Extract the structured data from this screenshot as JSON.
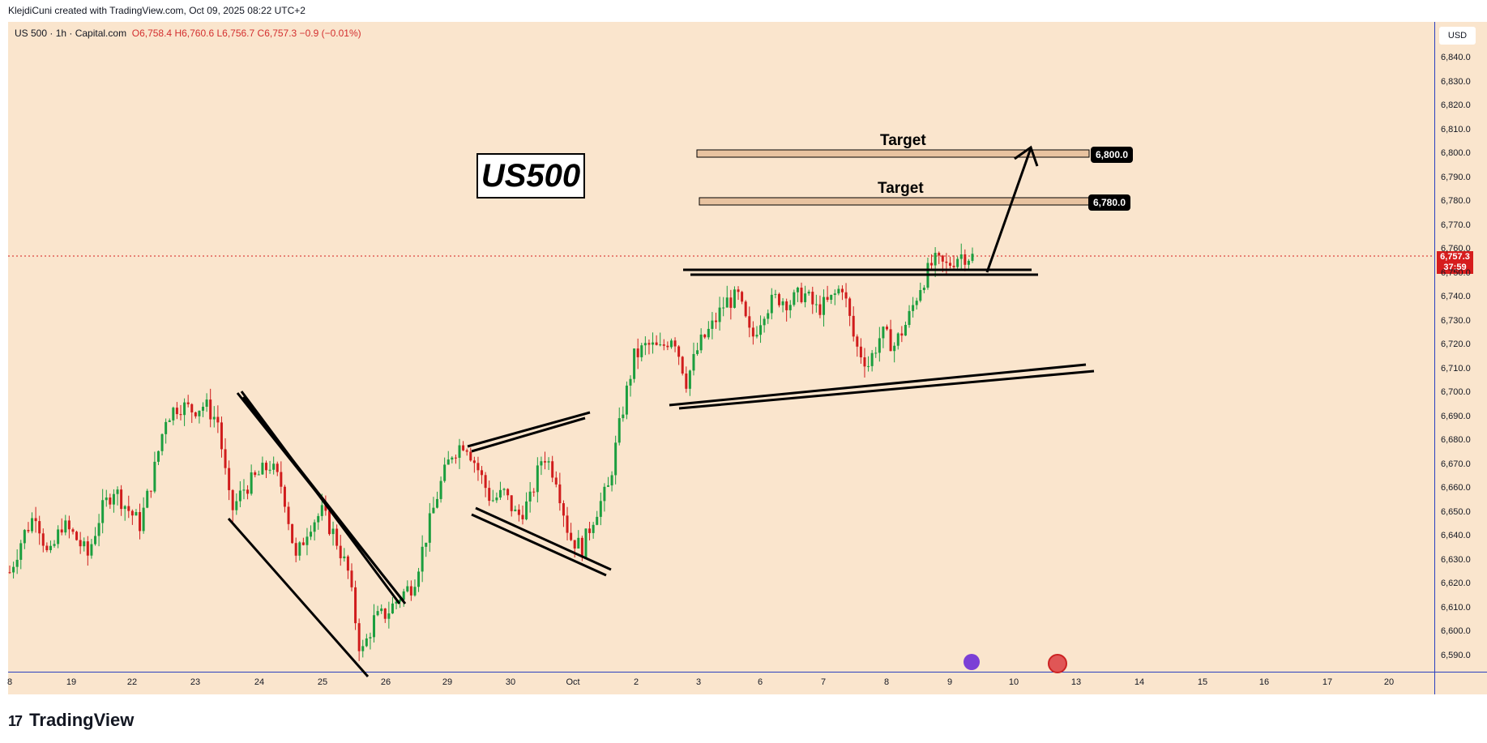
{
  "header": {
    "attribution": "KlejdiCuni created with TradingView.com, Oct 09, 2025 08:22 UTC+2"
  },
  "legend": {
    "symbol": "US 500 · 1h · Capital.com",
    "ohlc": "O6,758.4  H6,760.6  L6,756.7  C6,757.3  −0.9 (−0.01%)"
  },
  "price_axis": {
    "currency": "USD",
    "current_price": "6,757.3",
    "countdown": "37:59"
  },
  "annotations": {
    "title": "US500",
    "target1_label": "Target",
    "target1_price": "6,800.0",
    "target2_label": "Target",
    "target2_price": "6,780.0"
  },
  "footer": {
    "brand": "TradingView"
  },
  "colors": {
    "background": "#fae5cd",
    "up_candle": "#1b9e3e",
    "down_candle": "#d01c1c",
    "price_line": "#d61d1d",
    "target_zone": "#e8c3a0"
  },
  "chart_data": {
    "type": "candlestick",
    "symbol": "US 500",
    "interval": "1h",
    "y_ticks": [
      6590,
      6600,
      6610,
      6620,
      6630,
      6640,
      6650,
      6660,
      6670,
      6680,
      6690,
      6700,
      6710,
      6720,
      6730,
      6740,
      6750,
      6760,
      6770,
      6780,
      6790,
      6800,
      6810,
      6820,
      6830,
      6840
    ],
    "y_tick_labels": [
      "6,590.0",
      "6,600.0",
      "6,610.0",
      "6,620.0",
      "6,630.0",
      "6,640.0",
      "6,650.0",
      "6,660.0",
      "6,670.0",
      "6,680.0",
      "6,690.0",
      "6,700.0",
      "6,710.0",
      "6,720.0",
      "6,730.0",
      "6,740.0",
      "6,750.0",
      "6,760.0",
      "6,770.0",
      "6,780.0",
      "6,790.0",
      "6,800.0",
      "6,810.0",
      "6,820.0",
      "6,830.0",
      "6,840.0"
    ],
    "ylim": [
      6583,
      6850
    ],
    "x_tick_labels": [
      "8",
      "19",
      "22",
      "23",
      "24",
      "25",
      "26",
      "29",
      "30",
      "Oct",
      "2",
      "3",
      "6",
      "7",
      "8",
      "9",
      "10",
      "13",
      "14",
      "15",
      "16",
      "17",
      "20"
    ],
    "close_path": [
      [
        0,
        6625
      ],
      [
        1,
        6640
      ],
      [
        2,
        6650
      ],
      [
        3,
        6630
      ],
      [
        4,
        6645
      ],
      [
        5,
        6640
      ],
      [
        6,
        6632
      ],
      [
        7,
        6650
      ],
      [
        8,
        6660
      ],
      [
        9,
        6652
      ],
      [
        10,
        6645
      ],
      [
        11,
        6665
      ],
      [
        12,
        6690
      ],
      [
        13,
        6695
      ],
      [
        14,
        6693
      ],
      [
        15,
        6695
      ],
      [
        16,
        6688
      ],
      [
        17,
        6650
      ],
      [
        18,
        6660
      ],
      [
        19,
        6665
      ],
      [
        20,
        6670
      ],
      [
        21,
        6660
      ],
      [
        22,
        6630
      ],
      [
        23,
        6645
      ],
      [
        24,
        6650
      ],
      [
        25,
        6640
      ],
      [
        26,
        6625
      ],
      [
        27,
        6590
      ],
      [
        28,
        6605
      ],
      [
        29,
        6608
      ],
      [
        30,
        6615
      ],
      [
        31,
        6620
      ],
      [
        32,
        6640
      ],
      [
        33,
        6660
      ],
      [
        34,
        6675
      ],
      [
        35,
        6680
      ],
      [
        36,
        6668
      ],
      [
        37,
        6655
      ],
      [
        38,
        6658
      ],
      [
        39,
        6648
      ],
      [
        40,
        6655
      ],
      [
        41,
        6675
      ],
      [
        42,
        6665
      ],
      [
        43,
        6640
      ],
      [
        44,
        6635
      ],
      [
        45,
        6650
      ],
      [
        46,
        6660
      ],
      [
        47,
        6690
      ],
      [
        48,
        6715
      ],
      [
        49,
        6720
      ],
      [
        50,
        6718
      ],
      [
        51,
        6725
      ],
      [
        52,
        6705
      ],
      [
        53,
        6720
      ],
      [
        54,
        6728
      ],
      [
        55,
        6738
      ],
      [
        56,
        6740
      ],
      [
        57,
        6722
      ],
      [
        58,
        6735
      ],
      [
        59,
        6740
      ],
      [
        60,
        6738
      ],
      [
        61,
        6742
      ],
      [
        62,
        6735
      ],
      [
        63,
        6738
      ],
      [
        64,
        6745
      ],
      [
        65,
        6720
      ],
      [
        66,
        6712
      ],
      [
        67,
        6725
      ],
      [
        68,
        6720
      ],
      [
        69,
        6730
      ],
      [
        70,
        6745
      ],
      [
        71,
        6755
      ],
      [
        72,
        6753
      ],
      [
        73,
        6758
      ],
      [
        74,
        6757
      ]
    ],
    "current_price": 6757.3,
    "targets": [
      6800.0,
      6780.0
    ]
  }
}
